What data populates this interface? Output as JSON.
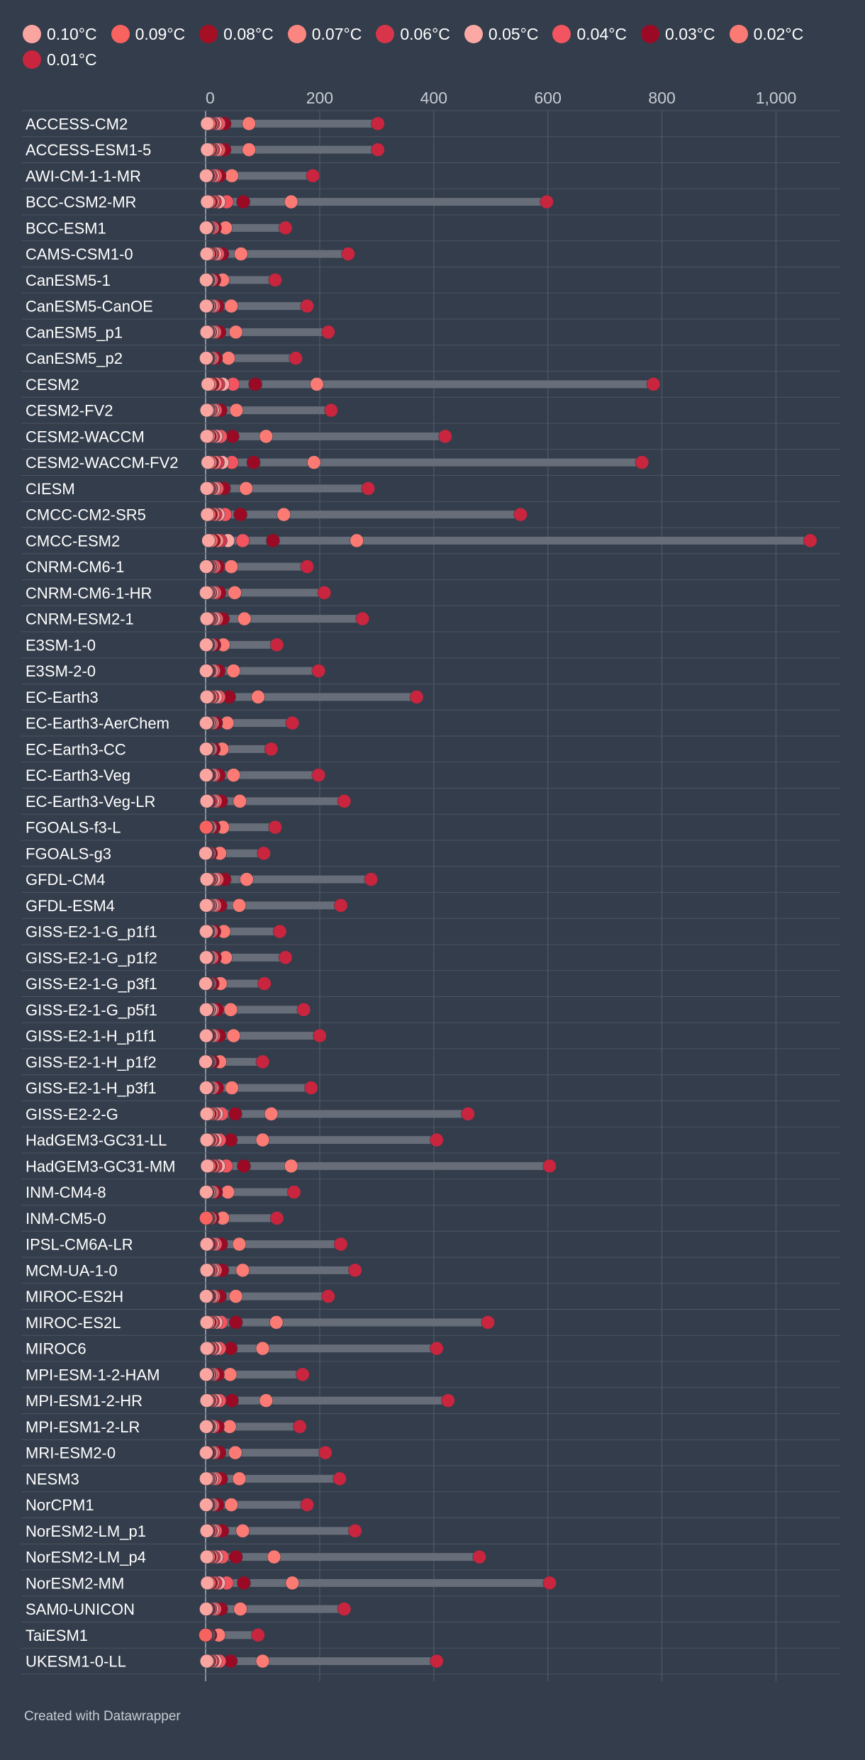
{
  "footer": "Created with Datawrapper",
  "colors": {
    "background": "#343d4b",
    "grid": "#4b5462",
    "bar": "#676e79",
    "axis_zero": "#8a919b",
    "tick_text": "#c7ccd4",
    "label_text": "#ffffff"
  },
  "legend": [
    {
      "label": "0.10°C",
      "color": "#fba5a1"
    },
    {
      "label": "0.09°C",
      "color": "#f8635f"
    },
    {
      "label": "0.08°C",
      "color": "#a50f24"
    },
    {
      "label": "0.07°C",
      "color": "#fb8580"
    },
    {
      "label": "0.06°C",
      "color": "#d8354b"
    },
    {
      "label": "0.05°C",
      "color": "#fca8a4"
    },
    {
      "label": "0.04°C",
      "color": "#f25560"
    },
    {
      "label": "0.03°C",
      "color": "#9b0a25"
    },
    {
      "label": "0.02°C",
      "color": "#fb7a74"
    },
    {
      "label": "0.01°C",
      "color": "#c9253f"
    }
  ],
  "chart_data": {
    "type": "range-dot",
    "title": "",
    "xlabel": "",
    "ylabel": "",
    "xlim": [
      0,
      1100
    ],
    "xticks": [
      0,
      200,
      400,
      600,
      800,
      1000
    ],
    "xtick_labels": [
      "0",
      "200",
      "400",
      "600",
      "800",
      "1,000"
    ],
    "grid": true,
    "legend_position": "top",
    "series_order": [
      "0.10°C",
      "0.09°C",
      "0.08°C",
      "0.07°C",
      "0.06°C",
      "0.05°C",
      "0.04°C",
      "0.03°C",
      "0.02°C",
      "0.01°C"
    ],
    "rows": [
      {
        "model": "ACCESS-CM2",
        "values": [
          3,
          6,
          8,
          10,
          13,
          17,
          23,
          33,
          76,
          302
        ]
      },
      {
        "model": "ACCESS-ESM1-5",
        "values": [
          3,
          6,
          8,
          10,
          13,
          17,
          23,
          33,
          76,
          302
        ]
      },
      {
        "model": "AWI-CM-1-1-MR",
        "values": [
          1,
          2,
          4,
          6,
          9,
          12,
          17,
          24,
          46,
          188
        ]
      },
      {
        "model": "BCC-CSM2-MR",
        "values": [
          3,
          6,
          9,
          12,
          16,
          23,
          37,
          66,
          150,
          598
        ]
      },
      {
        "model": "BCC-ESM1",
        "values": [
          1,
          2,
          3,
          4,
          6,
          8,
          12,
          16,
          35,
          140
        ]
      },
      {
        "model": "CAMS-CSM1-0",
        "values": [
          2,
          5,
          7,
          9,
          12,
          16,
          21,
          29,
          62,
          250
        ]
      },
      {
        "model": "CanESM5-1",
        "values": [
          1,
          2,
          3,
          4,
          5,
          7,
          10,
          15,
          30,
          122
        ]
      },
      {
        "model": "CanESM5-CanOE",
        "values": [
          1,
          2,
          3,
          5,
          7,
          10,
          14,
          21,
          45,
          178
        ]
      },
      {
        "model": "CanESM5_p1",
        "values": [
          2,
          3,
          4,
          6,
          8,
          11,
          16,
          24,
          53,
          215
        ]
      },
      {
        "model": "CanESM5_p2",
        "values": [
          1,
          2,
          3,
          4,
          6,
          8,
          12,
          18,
          40,
          158
        ]
      },
      {
        "model": "CESM2",
        "values": [
          4,
          8,
          12,
          17,
          22,
          30,
          48,
          87,
          195,
          785
        ]
      },
      {
        "model": "CESM2-FV2",
        "values": [
          2,
          4,
          5,
          7,
          9,
          12,
          17,
          26,
          54,
          220
        ]
      },
      {
        "model": "CESM2-WACCM",
        "values": [
          2,
          5,
          7,
          10,
          13,
          18,
          26,
          47,
          106,
          420
        ]
      },
      {
        "model": "CESM2-WACCM-FV2",
        "values": [
          4,
          8,
          11,
          16,
          21,
          29,
          46,
          84,
          190,
          765
        ]
      },
      {
        "model": "CIESM",
        "values": [
          2,
          4,
          6,
          8,
          10,
          14,
          20,
          32,
          71,
          285
        ]
      },
      {
        "model": "CMCC-CM2-SR5",
        "values": [
          3,
          6,
          9,
          13,
          17,
          22,
          34,
          61,
          137,
          552
        ]
      },
      {
        "model": "CMCC-ESM2",
        "values": [
          5,
          10,
          14,
          20,
          26,
          39,
          65,
          118,
          265,
          1060
        ]
      },
      {
        "model": "CNRM-CM6-1",
        "values": [
          1,
          2,
          4,
          6,
          8,
          10,
          15,
          22,
          45,
          178
        ]
      },
      {
        "model": "CNRM-CM6-1-HR",
        "values": [
          1,
          3,
          4,
          6,
          8,
          11,
          16,
          24,
          51,
          208
        ]
      },
      {
        "model": "CNRM-ESM2-1",
        "values": [
          2,
          4,
          6,
          8,
          10,
          14,
          19,
          30,
          68,
          275
        ]
      },
      {
        "model": "E3SM-1-0",
        "values": [
          1,
          2,
          3,
          4,
          5,
          7,
          10,
          15,
          31,
          125
        ]
      },
      {
        "model": "E3SM-2-0",
        "values": [
          1,
          2,
          4,
          5,
          7,
          10,
          14,
          23,
          49,
          198
        ]
      },
      {
        "model": "EC-Earth3",
        "values": [
          2,
          4,
          6,
          9,
          12,
          17,
          23,
          41,
          92,
          370
        ]
      },
      {
        "model": "EC-Earth3-AerChem",
        "values": [
          1,
          2,
          3,
          5,
          6,
          8,
          12,
          18,
          38,
          152
        ]
      },
      {
        "model": "EC-Earth3-CC",
        "values": [
          1,
          2,
          3,
          4,
          5,
          7,
          9,
          14,
          29,
          115
        ]
      },
      {
        "model": "EC-Earth3-Veg",
        "values": [
          1,
          2,
          4,
          5,
          7,
          10,
          14,
          23,
          49,
          198
        ]
      },
      {
        "model": "EC-Earth3-Veg-LR",
        "values": [
          2,
          3,
          5,
          6,
          9,
          12,
          17,
          27,
          60,
          243
        ]
      },
      {
        "model": "FGOALS-f3-L",
        "values": [
          1,
          1,
          2,
          3,
          4,
          6,
          8,
          14,
          30,
          122
        ]
      },
      {
        "model": "FGOALS-g3",
        "values": [
          0,
          1,
          1,
          2,
          3,
          4,
          6,
          9,
          25,
          102
        ]
      },
      {
        "model": "GFDL-CM4",
        "values": [
          2,
          4,
          6,
          8,
          10,
          14,
          20,
          33,
          72,
          290
        ]
      },
      {
        "model": "GFDL-ESM4",
        "values": [
          1,
          3,
          4,
          6,
          8,
          11,
          16,
          26,
          59,
          237
        ]
      },
      {
        "model": "GISS-E2-1-G_p1f1",
        "values": [
          1,
          2,
          3,
          4,
          5,
          7,
          10,
          15,
          32,
          130
        ]
      },
      {
        "model": "GISS-E2-1-G_p1f2",
        "values": [
          1,
          2,
          3,
          4,
          5,
          7,
          11,
          16,
          35,
          140
        ]
      },
      {
        "model": "GISS-E2-1-G_p3f1",
        "values": [
          0,
          1,
          2,
          3,
          4,
          5,
          7,
          12,
          26,
          103
        ]
      },
      {
        "model": "GISS-E2-1-G_p5f1",
        "values": [
          1,
          2,
          3,
          5,
          6,
          9,
          12,
          20,
          44,
          172
        ]
      },
      {
        "model": "GISS-E2-1-H_p1f1",
        "values": [
          1,
          2,
          4,
          5,
          7,
          10,
          14,
          24,
          49,
          200
        ]
      },
      {
        "model": "GISS-E2-1-H_p1f2",
        "values": [
          0,
          1,
          2,
          3,
          4,
          5,
          7,
          12,
          25,
          100
        ]
      },
      {
        "model": "GISS-E2-1-H_p3f1",
        "values": [
          1,
          2,
          3,
          4,
          6,
          8,
          12,
          20,
          46,
          185
        ]
      },
      {
        "model": "GISS-E2-2-G",
        "values": [
          2,
          5,
          7,
          10,
          14,
          19,
          28,
          52,
          115,
          460
        ]
      },
      {
        "model": "HadGEM3-GC31-LL",
        "values": [
          2,
          4,
          6,
          9,
          12,
          17,
          24,
          44,
          100,
          405
        ]
      },
      {
        "model": "HadGEM3-GC31-MM",
        "values": [
          3,
          6,
          9,
          12,
          17,
          23,
          36,
          67,
          150,
          603
        ]
      },
      {
        "model": "INM-CM4-8",
        "values": [
          1,
          2,
          3,
          5,
          6,
          8,
          12,
          18,
          39,
          155
        ]
      },
      {
        "model": "INM-CM5-0",
        "values": [
          1,
          1,
          2,
          3,
          4,
          5,
          8,
          12,
          30,
          125
        ]
      },
      {
        "model": "IPSL-CM6A-LR",
        "values": [
          2,
          3,
          5,
          6,
          9,
          12,
          17,
          27,
          59,
          237
        ]
      },
      {
        "model": "MCM-UA-1-0",
        "values": [
          2,
          3,
          5,
          7,
          9,
          12,
          17,
          29,
          65,
          262
        ]
      },
      {
        "model": "MIROC-ES2H",
        "values": [
          1,
          2,
          4,
          5,
          7,
          10,
          14,
          25,
          53,
          215
        ]
      },
      {
        "model": "MIROC-ES2L",
        "values": [
          2,
          5,
          7,
          10,
          13,
          18,
          27,
          53,
          124,
          495
        ]
      },
      {
        "model": "MIROC6",
        "values": [
          2,
          4,
          6,
          9,
          12,
          17,
          24,
          44,
          100,
          405
        ]
      },
      {
        "model": "MPI-ESM-1-2-HAM",
        "values": [
          1,
          2,
          3,
          5,
          7,
          9,
          13,
          21,
          43,
          170
        ]
      },
      {
        "model": "MPI-ESM1-2-HR",
        "values": [
          2,
          4,
          6,
          9,
          12,
          17,
          24,
          46,
          106,
          425
        ]
      },
      {
        "model": "MPI-ESM1-2-LR",
        "values": [
          1,
          2,
          3,
          4,
          6,
          9,
          13,
          21,
          42,
          165
        ]
      },
      {
        "model": "MRI-ESM2-0",
        "values": [
          1,
          2,
          4,
          5,
          7,
          10,
          14,
          24,
          52,
          210
        ]
      },
      {
        "model": "NESM3",
        "values": [
          1,
          3,
          4,
          6,
          8,
          11,
          17,
          27,
          59,
          235
        ]
      },
      {
        "model": "NorCPM1",
        "values": [
          1,
          2,
          3,
          4,
          6,
          8,
          12,
          21,
          45,
          178
        ]
      },
      {
        "model": "NorESM2-LM_p1",
        "values": [
          2,
          3,
          5,
          7,
          9,
          12,
          17,
          29,
          65,
          262
        ]
      },
      {
        "model": "NorESM2-LM_p4",
        "values": [
          2,
          5,
          7,
          10,
          14,
          19,
          29,
          53,
          120,
          480
        ]
      },
      {
        "model": "NorESM2-MM",
        "values": [
          3,
          6,
          9,
          12,
          17,
          23,
          37,
          67,
          152,
          603
        ]
      },
      {
        "model": "SAM0-UNICON",
        "values": [
          1,
          2,
          4,
          5,
          8,
          11,
          16,
          27,
          61,
          243
        ]
      },
      {
        "model": "TaiESM1",
        "values": [
          0,
          0,
          1,
          2,
          3,
          4,
          5,
          8,
          23,
          92
        ]
      },
      {
        "model": "UKESM1-0-LL",
        "values": [
          2,
          4,
          6,
          9,
          12,
          17,
          24,
          44,
          100,
          405
        ]
      }
    ]
  }
}
